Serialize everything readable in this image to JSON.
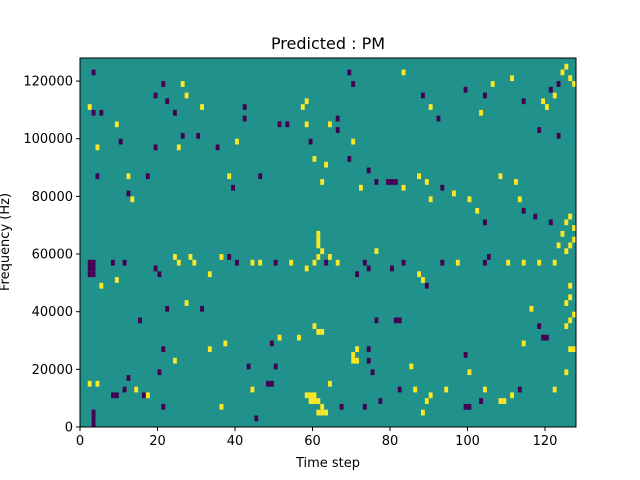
{
  "chart_data": {
    "type": "heatmap",
    "title": "Predicted : PM",
    "xlabel": "Time step",
    "ylabel": "Frequency (Hz)",
    "xlim": [
      0,
      128
    ],
    "ylim": [
      0,
      128000
    ],
    "xticks": [
      0,
      20,
      40,
      60,
      80,
      100,
      120
    ],
    "yticks": [
      0,
      20000,
      40000,
      60000,
      80000,
      100000,
      120000
    ],
    "xtick_labels": [
      "0",
      "20",
      "40",
      "60",
      "80",
      "100",
      "120"
    ],
    "ytick_labels": [
      "0",
      "20000",
      "40000",
      "60000",
      "80000",
      "100000",
      "120000"
    ],
    "colormap": "viridis",
    "levels": [
      {
        "value": 0,
        "color": "#440154"
      },
      {
        "value": 1,
        "color": "#21918c"
      },
      {
        "value": 2,
        "color": "#fde725"
      }
    ],
    "background_value": 1,
    "bin_size": {
      "time": 1,
      "freq": 2000
    },
    "cells": [
      [
        3,
        0,
        0
      ],
      [
        3,
        2000,
        0
      ],
      [
        3,
        4000,
        0
      ],
      [
        2,
        14000,
        2
      ],
      [
        4,
        14000,
        2
      ],
      [
        8,
        10000,
        0
      ],
      [
        9,
        10000,
        0
      ],
      [
        11,
        12000,
        0
      ],
      [
        12,
        16000,
        0
      ],
      [
        14,
        12000,
        2
      ],
      [
        16,
        10000,
        0
      ],
      [
        17,
        10000,
        2
      ],
      [
        21,
        6000,
        0
      ],
      [
        20,
        18000,
        0
      ],
      [
        21,
        26000,
        0
      ],
      [
        24,
        22000,
        2
      ],
      [
        22,
        40000,
        0
      ],
      [
        27,
        42000,
        2
      ],
      [
        31,
        40000,
        0
      ],
      [
        33,
        26000,
        2
      ],
      [
        37,
        28000,
        2
      ],
      [
        36,
        6000,
        2
      ],
      [
        43,
        20000,
        0
      ],
      [
        44,
        12000,
        2
      ],
      [
        45,
        2000,
        0
      ],
      [
        48,
        14000,
        0
      ],
      [
        49,
        14000,
        0
      ],
      [
        50,
        20000,
        0
      ],
      [
        49,
        28000,
        0
      ],
      [
        51,
        30000,
        2
      ],
      [
        56,
        30000,
        2
      ],
      [
        60,
        34000,
        2
      ],
      [
        61,
        32000,
        2
      ],
      [
        62,
        32000,
        2
      ],
      [
        61,
        4000,
        2
      ],
      [
        62,
        4000,
        2
      ],
      [
        63,
        4000,
        2
      ],
      [
        58,
        10000,
        2
      ],
      [
        59,
        10000,
        2
      ],
      [
        60,
        10000,
        2
      ],
      [
        59,
        8000,
        2
      ],
      [
        60,
        8000,
        2
      ],
      [
        61,
        8000,
        2
      ],
      [
        62,
        6000,
        2
      ],
      [
        64,
        14000,
        2
      ],
      [
        67,
        6000,
        0
      ],
      [
        70,
        22000,
        2
      ],
      [
        71,
        22000,
        2
      ],
      [
        70,
        24000,
        2
      ],
      [
        71,
        26000,
        2
      ],
      [
        74,
        26000,
        0
      ],
      [
        74,
        22000,
        0
      ],
      [
        75,
        18000,
        0
      ],
      [
        73,
        6000,
        0
      ],
      [
        77,
        8000,
        0
      ],
      [
        76,
        36000,
        0
      ],
      [
        81,
        36000,
        0
      ],
      [
        82,
        36000,
        0
      ],
      [
        85,
        20000,
        2
      ],
      [
        82,
        12000,
        0
      ],
      [
        86,
        12000,
        2
      ],
      [
        89,
        8000,
        2
      ],
      [
        90,
        10000,
        2
      ],
      [
        88,
        4000,
        2
      ],
      [
        94,
        12000,
        2
      ],
      [
        99,
        24000,
        0
      ],
      [
        100,
        18000,
        2
      ],
      [
        104,
        12000,
        2
      ],
      [
        99,
        6000,
        0
      ],
      [
        100,
        6000,
        0
      ],
      [
        103,
        8000,
        0
      ],
      [
        108,
        8000,
        2
      ],
      [
        109,
        8000,
        2
      ],
      [
        111,
        10000,
        2
      ],
      [
        113,
        12000,
        0
      ],
      [
        114,
        28000,
        2
      ],
      [
        116,
        40000,
        2
      ],
      [
        118,
        34000,
        0
      ],
      [
        119,
        30000,
        0
      ],
      [
        120,
        30000,
        0
      ],
      [
        122,
        12000,
        2
      ],
      [
        125,
        18000,
        2
      ],
      [
        126,
        26000,
        2
      ],
      [
        127,
        26000,
        2
      ],
      [
        125,
        34000,
        2
      ],
      [
        126,
        36000,
        2
      ],
      [
        127,
        38000,
        2
      ],
      [
        125,
        42000,
        2
      ],
      [
        126,
        44000,
        2
      ],
      [
        126,
        48000,
        2
      ],
      [
        2,
        56000,
        0
      ],
      [
        2,
        54000,
        0
      ],
      [
        2,
        52000,
        0
      ],
      [
        3,
        56000,
        0
      ],
      [
        3,
        54000,
        0
      ],
      [
        3,
        52000,
        0
      ],
      [
        5,
        48000,
        2
      ],
      [
        8,
        56000,
        0
      ],
      [
        9,
        50000,
        2
      ],
      [
        11,
        56000,
        0
      ],
      [
        15,
        36000,
        0
      ],
      [
        19,
        54000,
        0
      ],
      [
        20,
        52000,
        0
      ],
      [
        24,
        58000,
        2
      ],
      [
        25,
        56000,
        2
      ],
      [
        28,
        58000,
        2
      ],
      [
        29,
        56000,
        2
      ],
      [
        33,
        52000,
        2
      ],
      [
        36,
        58000,
        2
      ],
      [
        38,
        58000,
        0
      ],
      [
        40,
        56000,
        0
      ],
      [
        44,
        56000,
        2
      ],
      [
        46,
        56000,
        2
      ],
      [
        50,
        56000,
        0
      ],
      [
        54,
        56000,
        2
      ],
      [
        58,
        54000,
        2
      ],
      [
        60,
        56000,
        2
      ],
      [
        61,
        58000,
        2
      ],
      [
        61,
        62000,
        2
      ],
      [
        61,
        64000,
        2
      ],
      [
        61,
        66000,
        2
      ],
      [
        62,
        60000,
        2
      ],
      [
        63,
        56000,
        0
      ],
      [
        64,
        58000,
        2
      ],
      [
        66,
        56000,
        2
      ],
      [
        71,
        52000,
        0
      ],
      [
        73,
        56000,
        0
      ],
      [
        74,
        54000,
        0
      ],
      [
        76,
        60000,
        2
      ],
      [
        80,
        54000,
        0
      ],
      [
        83,
        56000,
        0
      ],
      [
        87,
        52000,
        2
      ],
      [
        88,
        50000,
        2
      ],
      [
        89,
        48000,
        0
      ],
      [
        93,
        56000,
        0
      ],
      [
        97,
        56000,
        2
      ],
      [
        104,
        56000,
        0
      ],
      [
        105,
        58000,
        0
      ],
      [
        110,
        56000,
        2
      ],
      [
        114,
        56000,
        2
      ],
      [
        118,
        56000,
        2
      ],
      [
        122,
        56000,
        2
      ],
      [
        125,
        60000,
        2
      ],
      [
        126,
        62000,
        2
      ],
      [
        127,
        64000,
        2
      ],
      [
        4,
        86000,
        0
      ],
      [
        4,
        96000,
        2
      ],
      [
        2,
        110000,
        2
      ],
      [
        3,
        108000,
        0
      ],
      [
        5,
        108000,
        0
      ],
      [
        9,
        104000,
        2
      ],
      [
        10,
        98000,
        0
      ],
      [
        12,
        86000,
        2
      ],
      [
        12,
        80000,
        0
      ],
      [
        13,
        78000,
        2
      ],
      [
        17,
        86000,
        0
      ],
      [
        19,
        96000,
        0
      ],
      [
        21,
        118000,
        0
      ],
      [
        22,
        112000,
        0
      ],
      [
        24,
        108000,
        0
      ],
      [
        25,
        96000,
        2
      ],
      [
        26,
        100000,
        0
      ],
      [
        27,
        114000,
        2
      ],
      [
        30,
        100000,
        0
      ],
      [
        31,
        110000,
        2
      ],
      [
        35,
        96000,
        0
      ],
      [
        38,
        86000,
        2
      ],
      [
        39,
        82000,
        0
      ],
      [
        40,
        98000,
        2
      ],
      [
        42,
        110000,
        0
      ],
      [
        46,
        86000,
        0
      ],
      [
        53,
        104000,
        0
      ],
      [
        57,
        110000,
        2
      ],
      [
        58,
        104000,
        2
      ],
      [
        59,
        98000,
        0
      ],
      [
        60,
        92000,
        2
      ],
      [
        62,
        84000,
        2
      ],
      [
        63,
        90000,
        2
      ],
      [
        64,
        104000,
        2
      ],
      [
        66,
        102000,
        0
      ],
      [
        69,
        92000,
        0
      ],
      [
        70,
        98000,
        2
      ],
      [
        74,
        88000,
        0
      ],
      [
        72,
        82000,
        2
      ],
      [
        76,
        84000,
        0
      ],
      [
        79,
        84000,
        0
      ],
      [
        80,
        84000,
        0
      ],
      [
        81,
        84000,
        0
      ],
      [
        83,
        82000,
        2
      ],
      [
        87,
        86000,
        2
      ],
      [
        89,
        84000,
        2
      ],
      [
        90,
        78000,
        2
      ],
      [
        93,
        82000,
        0
      ],
      [
        96,
        80000,
        2
      ],
      [
        100,
        78000,
        2
      ],
      [
        102,
        74000,
        2
      ],
      [
        104,
        70000,
        0
      ],
      [
        108,
        86000,
        2
      ],
      [
        112,
        84000,
        2
      ],
      [
        113,
        78000,
        2
      ],
      [
        114,
        74000,
        0
      ],
      [
        117,
        72000,
        0
      ],
      [
        121,
        70000,
        0
      ],
      [
        123,
        62000,
        2
      ],
      [
        124,
        66000,
        2
      ],
      [
        125,
        70000,
        2
      ],
      [
        126,
        72000,
        2
      ],
      [
        127,
        68000,
        2
      ],
      [
        3,
        122000,
        0
      ],
      [
        19,
        114000,
        0
      ],
      [
        26,
        118000,
        2
      ],
      [
        42,
        106000,
        0
      ],
      [
        51,
        104000,
        0
      ],
      [
        58,
        112000,
        2
      ],
      [
        66,
        106000,
        0
      ],
      [
        69,
        122000,
        0
      ],
      [
        70,
        118000,
        0
      ],
      [
        83,
        122000,
        2
      ],
      [
        88,
        114000,
        0
      ],
      [
        90,
        110000,
        2
      ],
      [
        92,
        106000,
        0
      ],
      [
        99,
        116000,
        0
      ],
      [
        103,
        108000,
        2
      ],
      [
        104,
        114000,
        0
      ],
      [
        106,
        118000,
        2
      ],
      [
        111,
        120000,
        2
      ],
      [
        114,
        112000,
        0
      ],
      [
        120,
        110000,
        2
      ],
      [
        121,
        116000,
        0
      ],
      [
        122,
        114000,
        2
      ],
      [
        123,
        118000,
        0
      ],
      [
        124,
        122000,
        2
      ],
      [
        125,
        124000,
        2
      ],
      [
        126,
        120000,
        2
      ],
      [
        127,
        118000,
        2
      ],
      [
        119,
        112000,
        2
      ],
      [
        123,
        100000,
        0
      ],
      [
        118,
        102000,
        0
      ]
    ]
  }
}
